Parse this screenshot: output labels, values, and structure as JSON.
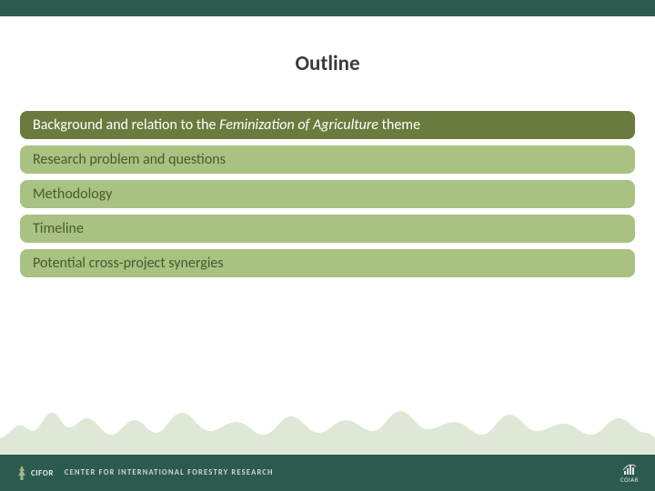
{
  "colors": {
    "top_bar": "#2d5a4f",
    "footer_bar": "#2d5a4f",
    "title_text": "#3b3b3b",
    "bar_border_radius": 8,
    "tree_fill": "#dfe8d6",
    "cifor_text": "#e8ebe9",
    "footer_text": "#cfd6d2"
  },
  "title": {
    "text": "Outline",
    "font_size": 23,
    "font_weight": "bold"
  },
  "bars": [
    {
      "segments": [
        {
          "text": "Background and relation to the ",
          "italic": false
        },
        {
          "text": "Feminization of Agriculture",
          "italic": true
        },
        {
          "text": " theme",
          "italic": false
        }
      ],
      "bg": "#6b7a3d",
      "text_color": "#ffffff"
    },
    {
      "segments": [
        {
          "text": "Research problem and questions",
          "italic": false
        }
      ],
      "bg": "#a9c282",
      "text_color": "#4a5a2a"
    },
    {
      "segments": [
        {
          "text": "Methodology",
          "italic": false
        }
      ],
      "bg": "#a9c282",
      "text_color": "#4a5a2a"
    },
    {
      "segments": [
        {
          "text": "Timeline",
          "italic": false
        }
      ],
      "bg": "#a9c282",
      "text_color": "#4a5a2a"
    },
    {
      "segments": [
        {
          "text": "Potential cross-project synergies",
          "italic": false
        }
      ],
      "bg": "#a9c282",
      "text_color": "#4a5a2a"
    }
  ],
  "footer": {
    "cifor_label": "CIFOR",
    "center_text": "CENTER FOR INTERNATIONAL FORESTRY RESEARCH",
    "cgiar_label": "CGIAR"
  }
}
